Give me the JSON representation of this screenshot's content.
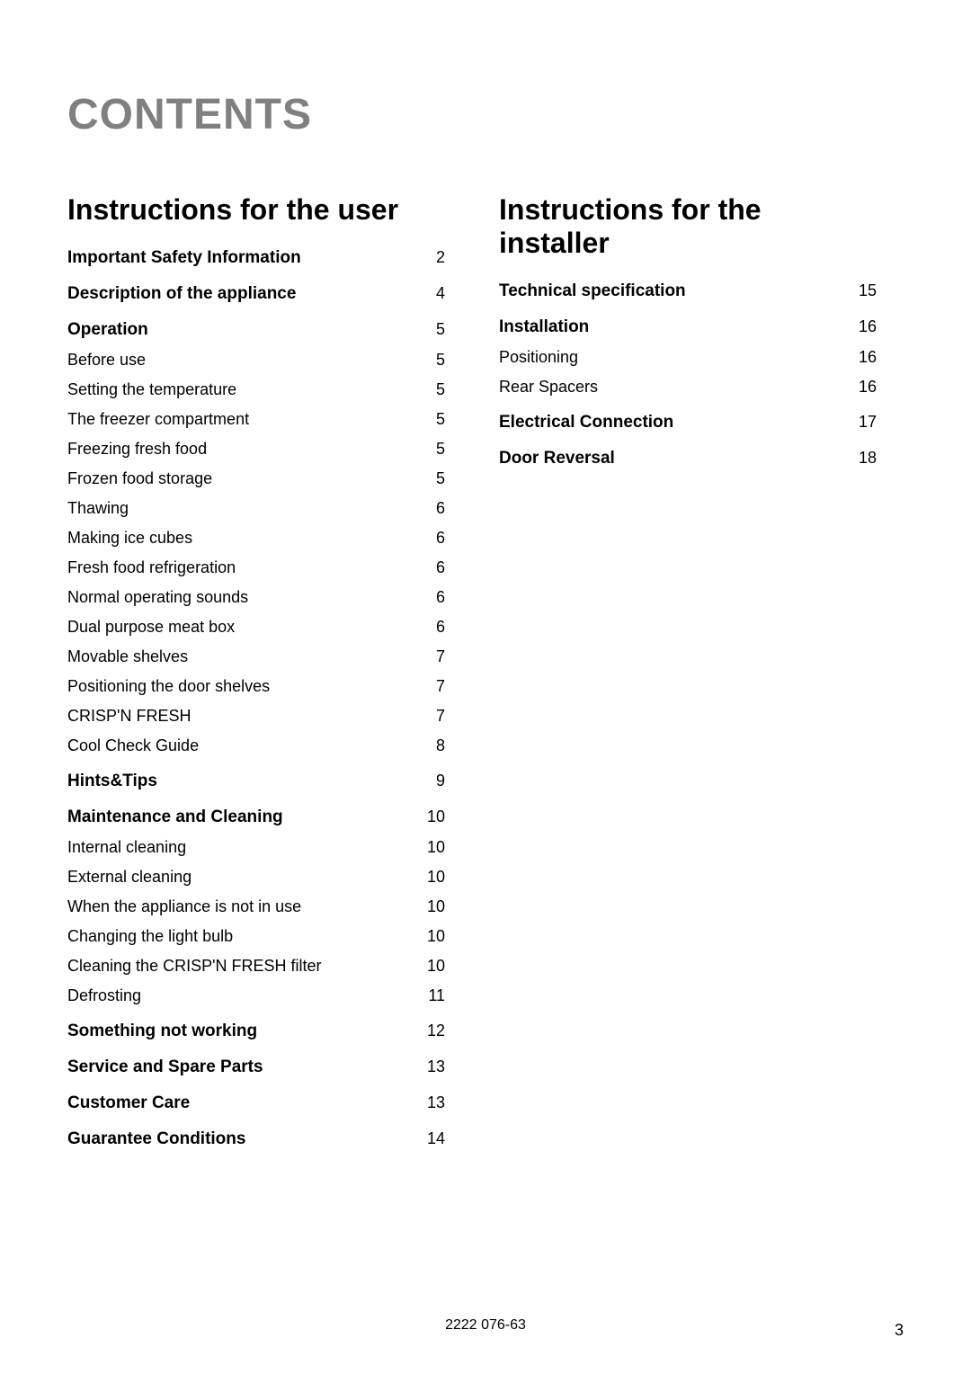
{
  "title": "CONTENTS",
  "footer_code": "2222 076-63",
  "page_number": "3",
  "left": {
    "heading": "Instructions for the user",
    "items": [
      {
        "label": "Important Safety Information",
        "page": "2",
        "bold": true
      },
      {
        "label": "Description of the appliance",
        "page": "4",
        "bold": true
      },
      {
        "label": "Operation",
        "page": "5",
        "bold": true
      },
      {
        "label": "Before use",
        "page": "5",
        "bold": false
      },
      {
        "label": "Setting the temperature",
        "page": "5",
        "bold": false
      },
      {
        "label": "The freezer compartment",
        "page": "5",
        "bold": false
      },
      {
        "label": "Freezing fresh food",
        "page": "5",
        "bold": false
      },
      {
        "label": "Frozen food storage",
        "page": "5",
        "bold": false
      },
      {
        "label": "Thawing",
        "page": "6",
        "bold": false
      },
      {
        "label": "Making ice cubes",
        "page": "6",
        "bold": false
      },
      {
        "label": "Fresh food refrigeration",
        "page": "6",
        "bold": false
      },
      {
        "label": "Normal operating sounds",
        "page": "6",
        "bold": false
      },
      {
        "label": "Dual purpose meat box",
        "page": "6",
        "bold": false
      },
      {
        "label": "Movable shelves",
        "page": "7",
        "bold": false
      },
      {
        "label": "Positioning the door shelves",
        "page": "7",
        "bold": false
      },
      {
        "label": "CRISP'N FRESH",
        "page": "7",
        "bold": false
      },
      {
        "label": "Cool Check Guide",
        "page": "8",
        "bold": false
      },
      {
        "label": "Hints&Tips",
        "page": "9",
        "bold": true
      },
      {
        "label": "Maintenance and Cleaning",
        "page": "10",
        "bold": true
      },
      {
        "label": "Internal cleaning",
        "page": "10",
        "bold": false
      },
      {
        "label": "External cleaning",
        "page": "10",
        "bold": false
      },
      {
        "label": "When the appliance is not in use",
        "page": "10",
        "bold": false
      },
      {
        "label": "Changing the light bulb",
        "page": "10",
        "bold": false
      },
      {
        "label": "Cleaning the CRISP'N FRESH filter",
        "page": "10",
        "bold": false
      },
      {
        "label": "Defrosting",
        "page": "11",
        "bold": false
      },
      {
        "label": "Something not working",
        "page": "12",
        "bold": true
      },
      {
        "label": "Service and Spare Parts",
        "page": "13",
        "bold": true
      },
      {
        "label": "Customer Care",
        "page": "13",
        "bold": true
      },
      {
        "label": "Guarantee Conditions",
        "page": "14",
        "bold": true
      }
    ]
  },
  "right": {
    "heading": "Instructions for the installer",
    "items": [
      {
        "label": "Technical specification",
        "page": "15",
        "bold": true
      },
      {
        "label": "Installation",
        "page": "16",
        "bold": true
      },
      {
        "label": "Positioning",
        "page": "16",
        "bold": false
      },
      {
        "label": "Rear Spacers",
        "page": "16",
        "bold": false
      },
      {
        "label": "Electrical Connection",
        "page": "17",
        "bold": true
      },
      {
        "label": "Door Reversal",
        "page": "18",
        "bold": true
      }
    ]
  }
}
